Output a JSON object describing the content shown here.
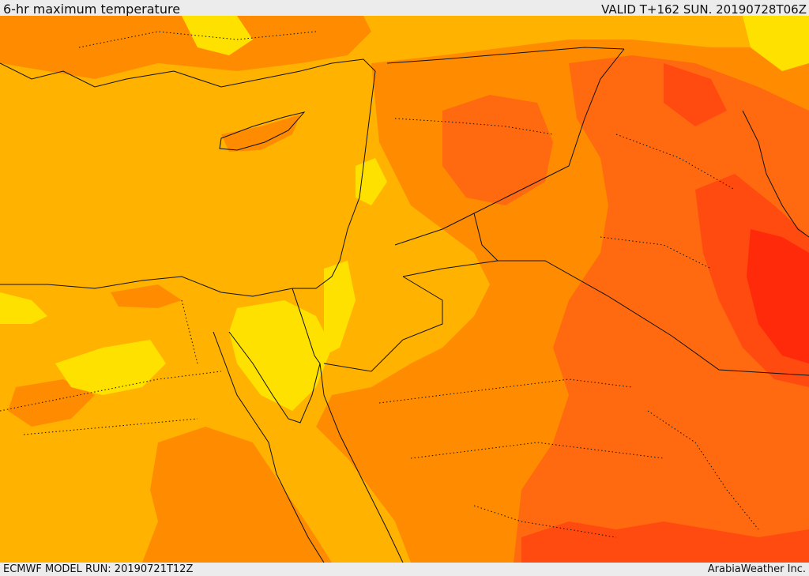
{
  "header": {
    "title": "6-hr maximum temperature",
    "valid": "VALID T+162 SUN. 20190728T06Z"
  },
  "footer": {
    "model_run": "ECMWF MODEL RUN: 20190721T12Z",
    "credit": "ArabiaWeather Inc."
  },
  "legend_colors": {
    "band_1": "#ffe100",
    "band_2": "#ffb300",
    "band_3": "#ff8c00",
    "band_4": "#ff6a10",
    "band_5": "#ff4a10",
    "band_6": "#ff2a0a"
  }
}
